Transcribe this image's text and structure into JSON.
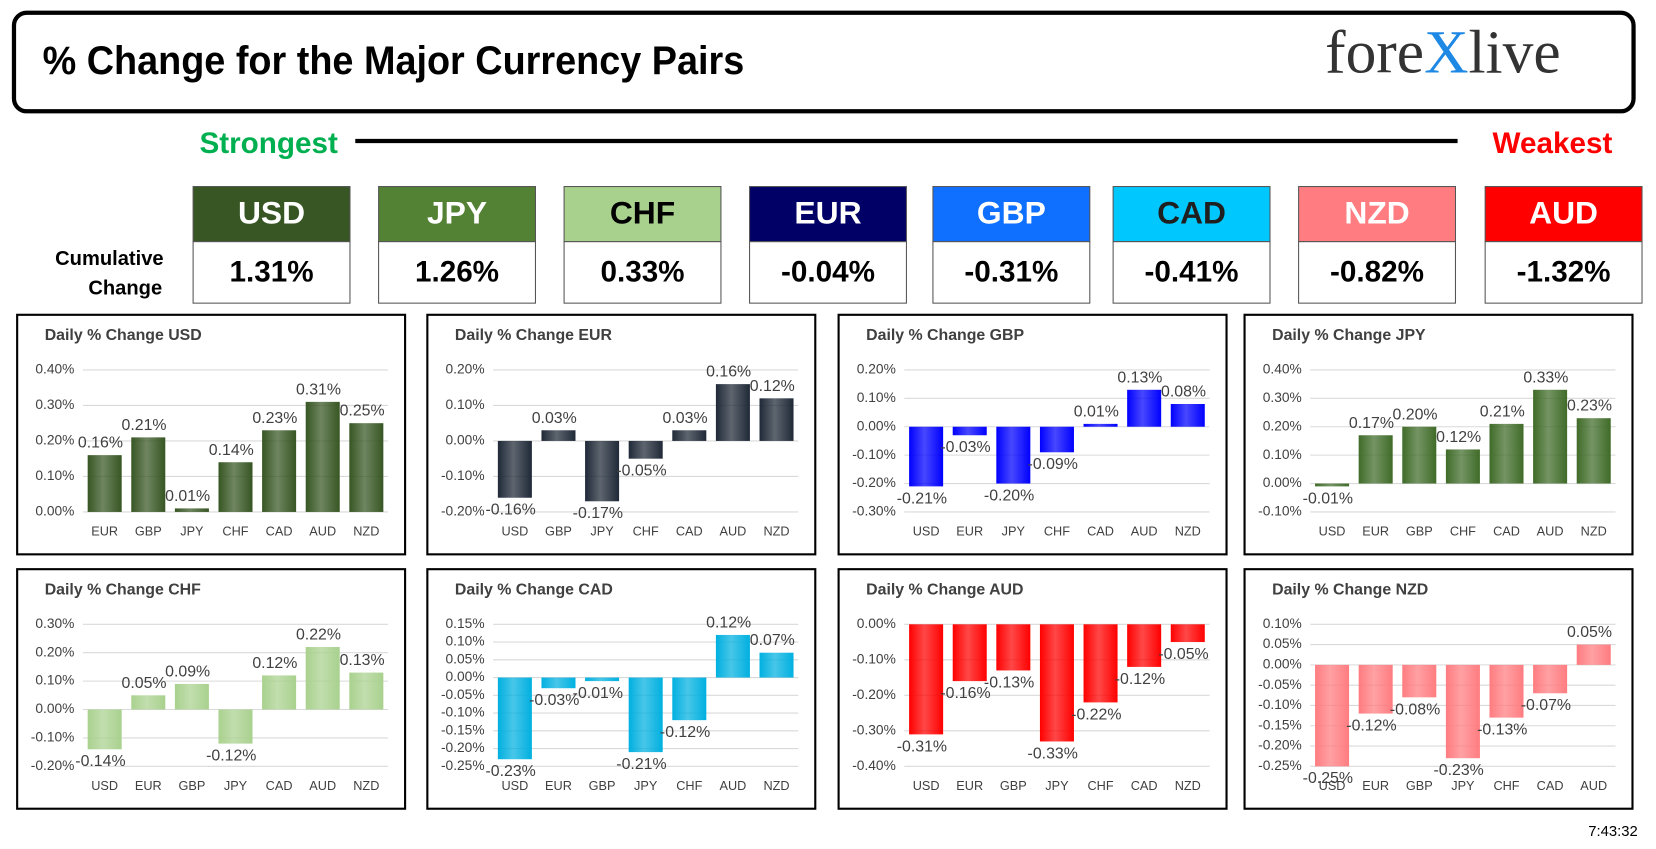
{
  "header": {
    "title": "% Change for the Major Currency Pairs",
    "logo": {
      "left": "fore",
      "mark": "X",
      "right": "live"
    }
  },
  "scale": {
    "strongest": "Strongest",
    "weakest": "Weakest"
  },
  "cumulative": {
    "label": [
      "Cumulative",
      "Change"
    ],
    "currencies": [
      {
        "name": "USD",
        "change": "1.31%",
        "color": "#375623",
        "text_color": "#ffffff"
      },
      {
        "name": "JPY",
        "change": "1.26%",
        "color": "#548235",
        "text_color": "#ffffff"
      },
      {
        "name": "CHF",
        "change": "0.33%",
        "color": "#a9d18e",
        "text_color": "#000000"
      },
      {
        "name": "EUR",
        "change": "-0.04%",
        "color": "#000066",
        "text_color": "#ffffff"
      },
      {
        "name": "GBP",
        "change": "-0.31%",
        "color": "#0f6fff",
        "text_color": "#ffffff"
      },
      {
        "name": "CAD",
        "change": "-0.41%",
        "color": "#00c8ff",
        "text_color": "#1f1f1f"
      },
      {
        "name": "NZD",
        "change": "-0.82%",
        "color": "#ff7c80",
        "text_color": "#ffffff"
      },
      {
        "name": "AUD",
        "change": "-1.32%",
        "color": "#ff0000",
        "text_color": "#ffffff"
      }
    ]
  },
  "timestamp": "7:43:32",
  "chart_data": [
    {
      "type": "bar",
      "title": "Daily % Change USD",
      "color": "#375623",
      "grid": true,
      "categories": [
        "EUR",
        "GBP",
        "JPY",
        "CHF",
        "CAD",
        "AUD",
        "NZD"
      ],
      "values": [
        0.16,
        0.21,
        0.01,
        0.14,
        0.23,
        0.31,
        0.25
      ],
      "value_labels": [
        "0.16%",
        "0.21%",
        "0.01%",
        "0.14%",
        "0.23%",
        "0.31%",
        "0.25%"
      ],
      "ylim": [
        0,
        0.4
      ],
      "yticks": [
        {
          "value": 0,
          "label": "0.00%"
        },
        {
          "value": 0.1,
          "label": "0.10%"
        },
        {
          "value": 0.2,
          "label": "0.20%"
        },
        {
          "value": 0.3,
          "label": "0.30%"
        },
        {
          "value": 0.4,
          "label": "0.40%"
        }
      ]
    },
    {
      "type": "bar",
      "title": "Daily % Change EUR",
      "color": "#1f2937",
      "grid": true,
      "categories": [
        "USD",
        "GBP",
        "JPY",
        "CHF",
        "CAD",
        "AUD",
        "NZD"
      ],
      "values": [
        -0.16,
        0.03,
        -0.17,
        -0.05,
        0.03,
        0.16,
        0.12
      ],
      "value_labels": [
        "-0.16%",
        "0.03%",
        "-0.17%",
        "-0.05%",
        "0.03%",
        "0.16%",
        "0.12%"
      ],
      "ylim": [
        -0.2,
        0.2
      ],
      "yticks": [
        {
          "value": -0.2,
          "label": "-0.20%"
        },
        {
          "value": -0.1,
          "label": "-0.10%"
        },
        {
          "value": 0,
          "label": "0.00%"
        },
        {
          "value": 0.1,
          "label": "0.10%"
        },
        {
          "value": 0.2,
          "label": "0.20%"
        }
      ]
    },
    {
      "type": "bar",
      "title": "Daily % Change GBP",
      "color": "#0000ff",
      "grid": true,
      "categories": [
        "USD",
        "EUR",
        "JPY",
        "CHF",
        "CAD",
        "AUD",
        "NZD"
      ],
      "values": [
        -0.21,
        -0.03,
        -0.2,
        -0.09,
        0.01,
        0.13,
        0.08
      ],
      "value_labels": [
        "-0.21%",
        "-0.03%",
        "-0.20%",
        "-0.09%",
        "0.01%",
        "0.13%",
        "0.08%"
      ],
      "ylim": [
        -0.3,
        0.2
      ],
      "yticks": [
        {
          "value": -0.3,
          "label": "-0.30%"
        },
        {
          "value": -0.2,
          "label": "-0.20%"
        },
        {
          "value": -0.1,
          "label": "-0.10%"
        },
        {
          "value": 0,
          "label": "0.00%"
        },
        {
          "value": 0.1,
          "label": "0.10%"
        },
        {
          "value": 0.2,
          "label": "0.20%"
        }
      ]
    },
    {
      "type": "bar",
      "title": "Daily % Change JPY",
      "color": "#3f6b28",
      "grid": true,
      "categories": [
        "USD",
        "EUR",
        "GBP",
        "CHF",
        "CAD",
        "AUD",
        "NZD"
      ],
      "values": [
        -0.01,
        0.17,
        0.2,
        0.12,
        0.21,
        0.33,
        0.23
      ],
      "value_labels": [
        "-0.01%",
        "0.17%",
        "0.20%",
        "0.12%",
        "0.21%",
        "0.33%",
        "0.23%"
      ],
      "ylim": [
        -0.1,
        0.4
      ],
      "yticks": [
        {
          "value": -0.1,
          "label": "-0.10%"
        },
        {
          "value": 0,
          "label": "0.00%"
        },
        {
          "value": 0.1,
          "label": "0.10%"
        },
        {
          "value": 0.2,
          "label": "0.20%"
        },
        {
          "value": 0.3,
          "label": "0.30%"
        },
        {
          "value": 0.4,
          "label": "0.40%"
        }
      ]
    },
    {
      "type": "bar",
      "title": "Daily % Change CHF",
      "color": "#a9d18e",
      "grid": true,
      "categories": [
        "USD",
        "EUR",
        "GBP",
        "JPY",
        "CAD",
        "AUD",
        "NZD"
      ],
      "values": [
        -0.14,
        0.05,
        0.09,
        -0.12,
        0.12,
        0.22,
        0.13
      ],
      "value_labels": [
        "-0.14%",
        "0.05%",
        "0.09%",
        "-0.12%",
        "0.12%",
        "0.22%",
        "0.13%"
      ],
      "ylim": [
        -0.2,
        0.3
      ],
      "yticks": [
        {
          "value": -0.2,
          "label": "-0.20%"
        },
        {
          "value": -0.1,
          "label": "-0.10%"
        },
        {
          "value": 0,
          "label": "0.00%"
        },
        {
          "value": 0.1,
          "label": "0.10%"
        },
        {
          "value": 0.2,
          "label": "0.20%"
        },
        {
          "value": 0.3,
          "label": "0.30%"
        }
      ]
    },
    {
      "type": "bar",
      "title": "Daily % Change CAD",
      "color": "#00b0e0",
      "grid": true,
      "categories": [
        "USD",
        "EUR",
        "GBP",
        "JPY",
        "CHF",
        "AUD",
        "NZD"
      ],
      "values": [
        -0.23,
        -0.03,
        -0.01,
        -0.21,
        -0.12,
        0.12,
        0.07
      ],
      "value_labels": [
        "-0.23%",
        "-0.03%",
        "-0.01%",
        "-0.21%",
        "-0.12%",
        "0.12%",
        "0.07%"
      ],
      "ylim": [
        -0.25,
        0.15
      ],
      "yticks": [
        {
          "value": -0.25,
          "label": "-0.25%"
        },
        {
          "value": -0.2,
          "label": "-0.20%"
        },
        {
          "value": -0.15,
          "label": "-0.15%"
        },
        {
          "value": -0.1,
          "label": "-0.10%"
        },
        {
          "value": -0.05,
          "label": "-0.05%"
        },
        {
          "value": 0,
          "label": "0.00%"
        },
        {
          "value": 0.05,
          "label": "0.05%"
        },
        {
          "value": 0.1,
          "label": "0.10%"
        },
        {
          "value": 0.15,
          "label": "0.15%"
        }
      ]
    },
    {
      "type": "bar",
      "title": "Daily % Change AUD",
      "color": "#ff0000",
      "grid": true,
      "categories": [
        "USD",
        "EUR",
        "GBP",
        "JPY",
        "CHF",
        "CAD",
        "NZD"
      ],
      "values": [
        -0.31,
        -0.16,
        -0.13,
        -0.33,
        -0.22,
        -0.12,
        -0.05
      ],
      "value_labels": [
        "-0.31%",
        "-0.16%",
        "-0.13%",
        "-0.33%",
        "-0.22%",
        "-0.12%",
        "-0.05%"
      ],
      "ylim": [
        -0.4,
        0
      ],
      "yticks": [
        {
          "value": -0.4,
          "label": "-0.40%"
        },
        {
          "value": -0.3,
          "label": "-0.30%"
        },
        {
          "value": -0.2,
          "label": "-0.20%"
        },
        {
          "value": -0.1,
          "label": "-0.10%"
        },
        {
          "value": 0,
          "label": "0.00%"
        }
      ]
    },
    {
      "type": "bar",
      "title": "Daily % Change NZD",
      "color": "#ff7c80",
      "grid": true,
      "categories": [
        "USD",
        "EUR",
        "GBP",
        "JPY",
        "CHF",
        "CAD",
        "AUD"
      ],
      "values": [
        -0.25,
        -0.12,
        -0.08,
        -0.23,
        -0.13,
        -0.07,
        0.05
      ],
      "value_labels": [
        "-0.25%",
        "-0.12%",
        "-0.08%",
        "-0.23%",
        "-0.13%",
        "-0.07%",
        "0.05%"
      ],
      "ylim": [
        -0.25,
        0.1
      ],
      "yticks": [
        {
          "value": -0.25,
          "label": "-0.25%"
        },
        {
          "value": -0.2,
          "label": "-0.20%"
        },
        {
          "value": -0.15,
          "label": "-0.15%"
        },
        {
          "value": -0.1,
          "label": "-0.10%"
        },
        {
          "value": -0.05,
          "label": "-0.05%"
        },
        {
          "value": 0,
          "label": "0.00%"
        },
        {
          "value": 0.05,
          "label": "0.05%"
        },
        {
          "value": 0.1,
          "label": "0.10%"
        }
      ]
    }
  ]
}
